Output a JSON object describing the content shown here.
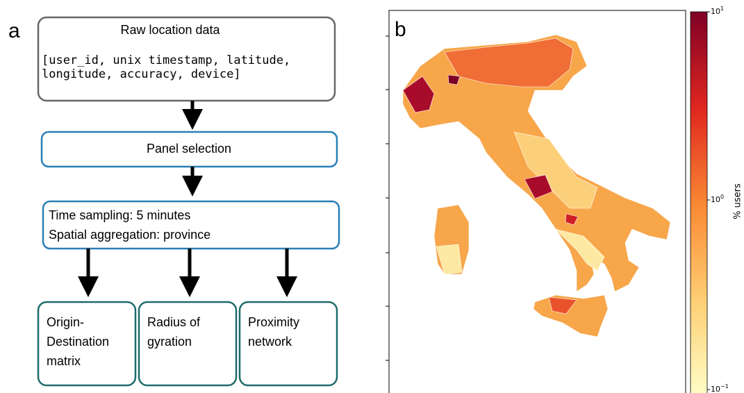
{
  "panel_a": {
    "letter": "a",
    "raw_box": {
      "title": "Raw location data",
      "fields_line_1": "[user_id, unix timestamp, latitude,",
      "fields_line_2": "longitude, accuracy, device]"
    },
    "panel_box": {
      "label": "Panel selection"
    },
    "sampling_box": {
      "line_1": "Time sampling: 5 minutes",
      "line_2": "Spatial aggregation: province"
    },
    "outputs": [
      {
        "lines": [
          "Origin-",
          "Destination",
          "matrix"
        ]
      },
      {
        "lines": [
          "Radius of",
          "gyration"
        ]
      },
      {
        "lines": [
          "Proximity",
          "network"
        ]
      }
    ]
  },
  "panel_b": {
    "letter": "b",
    "colorbar": {
      "label": "% users",
      "ticks": [
        {
          "base": "10",
          "exp": "1"
        },
        {
          "base": "10",
          "exp": "0"
        },
        {
          "base": "10",
          "exp": "−1"
        }
      ]
    }
  }
}
